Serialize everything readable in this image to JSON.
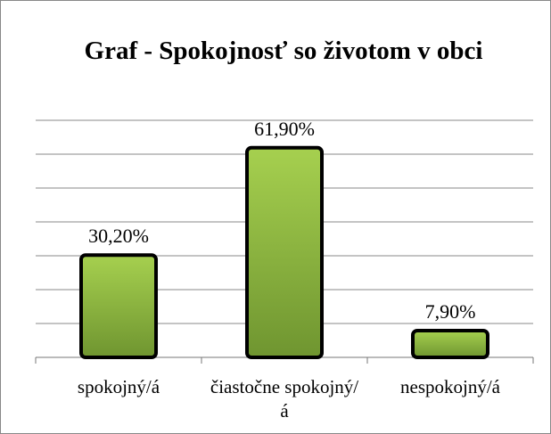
{
  "chart_data": {
    "type": "bar",
    "title": "Graf - Spokojnosť so životom v obci",
    "categories": [
      "spokojný/á",
      "čiastočne spokojný/á",
      "nespokojný/á"
    ],
    "values": [
      30.2,
      61.9,
      7.9
    ],
    "value_labels": [
      "30,20%",
      "61,90%",
      "7,90%"
    ],
    "color": "#8db83a",
    "ylim": [
      0,
      70
    ],
    "yticks": [
      0,
      10,
      20,
      30,
      40,
      50,
      60,
      70
    ],
    "grid": true
  }
}
